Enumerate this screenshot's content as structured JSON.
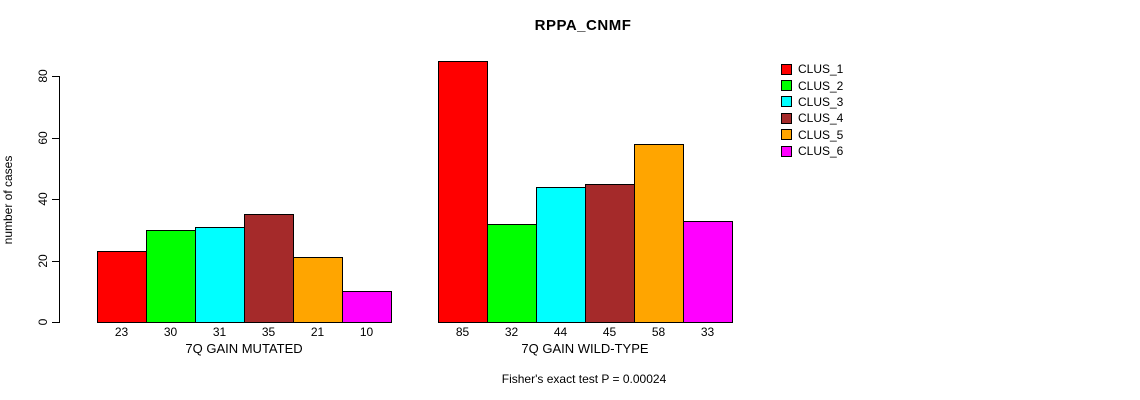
{
  "chart_data": {
    "type": "bar",
    "title": "RPPA_CNMF",
    "ylabel": "number of cases",
    "xlabel": "",
    "ylim": [
      0,
      80
    ],
    "yticks": [
      0,
      20,
      40,
      60,
      80
    ],
    "grid": false,
    "legend_position": "right",
    "categories": [
      "7Q GAIN MUTATED",
      "7Q GAIN WILD-TYPE"
    ],
    "series": [
      {
        "name": "CLUS_1",
        "color": "#FF0000",
        "values": [
          23,
          85
        ]
      },
      {
        "name": "CLUS_2",
        "color": "#00FF00",
        "values": [
          30,
          32
        ]
      },
      {
        "name": "CLUS_3",
        "color": "#00FFFF",
        "values": [
          31,
          44
        ]
      },
      {
        "name": "CLUS_4",
        "color": "#A52A2A",
        "values": [
          35,
          45
        ]
      },
      {
        "name": "CLUS_5",
        "color": "#FFA500",
        "values": [
          21,
          58
        ]
      },
      {
        "name": "CLUS_6",
        "color": "#FF00FF",
        "values": [
          10,
          33
        ]
      }
    ],
    "bar_value_labels_shown": true,
    "annotation": "Fisher's exact test P = 0.00024"
  }
}
